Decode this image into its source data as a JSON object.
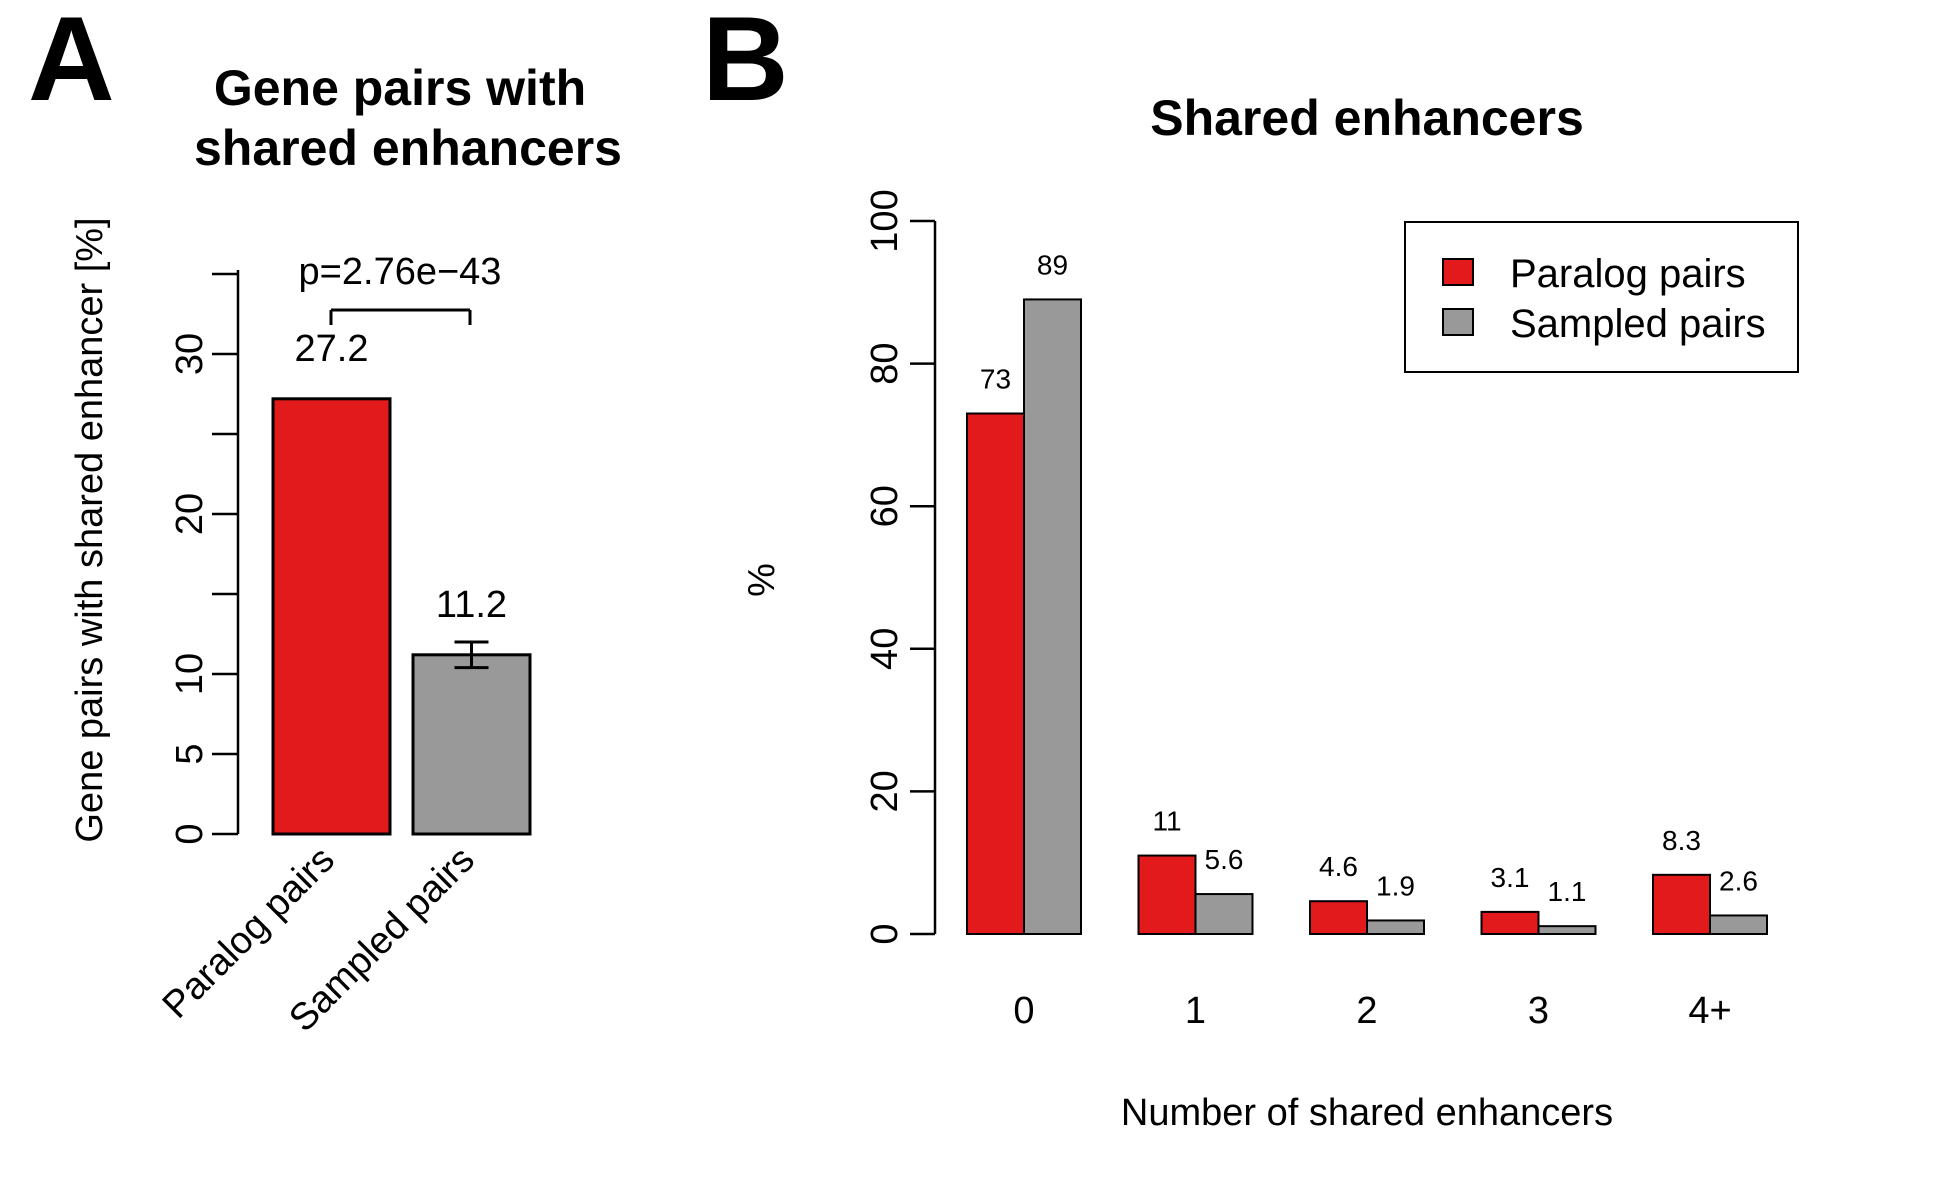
{
  "panels": {
    "a_label": "A",
    "b_label": "B"
  },
  "colors": {
    "paralog": "#e31a1c",
    "sampled": "#999999"
  },
  "chart_data": [
    {
      "type": "bar",
      "title": [
        "Gene pairs with",
        "shared enhancers"
      ],
      "ylabel": "Gene pairs with shared enhancer [%]",
      "xlabel": "",
      "categories": [
        "Paralog pairs",
        "Sampled pairs"
      ],
      "values": [
        27.2,
        11.2
      ],
      "value_labels": [
        "27.2",
        "11.2"
      ],
      "error_bar": {
        "category": "Sampled pairs",
        "low": 10.4,
        "high": 12.0
      },
      "yticks": [
        0,
        5,
        10,
        20,
        30
      ],
      "minor_yticks": [
        15,
        25,
        35
      ],
      "ylim": [
        0,
        35
      ],
      "annotation": "p=2.76e−43"
    },
    {
      "type": "bar",
      "title": "Shared enhancers",
      "xlabel": "Number of shared enhancers",
      "ylabel": "%",
      "categories": [
        "0",
        "1",
        "2",
        "3",
        "4+"
      ],
      "series": [
        {
          "name": "Paralog pairs",
          "values": [
            73,
            11,
            4.6,
            3.1,
            8.3
          ],
          "labels": [
            "73",
            "11",
            "4.6",
            "3.1",
            "8.3"
          ]
        },
        {
          "name": "Sampled pairs",
          "values": [
            89,
            5.6,
            1.9,
            1.1,
            2.6
          ],
          "labels": [
            "89",
            "5.6",
            "1.9",
            "1.1",
            "2.6"
          ]
        }
      ],
      "yticks": [
        0,
        20,
        40,
        60,
        80,
        100
      ],
      "ylim": [
        0,
        100
      ],
      "legend": "top-right"
    }
  ]
}
